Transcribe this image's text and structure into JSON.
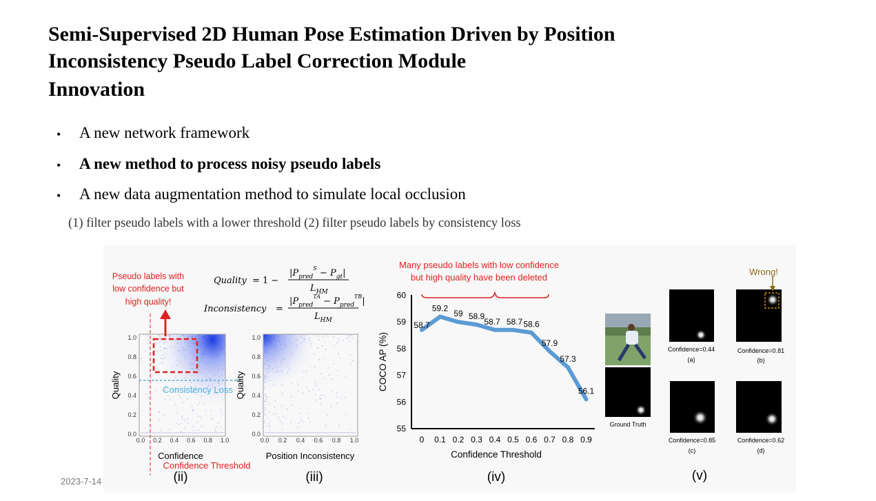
{
  "title_line1": "Semi-Supervised 2D Human Pose Estimation Driven by Position",
  "title_line2": "Inconsistency Pseudo Label Correction Module",
  "subtitle": "Innovation",
  "bullets": [
    "A new network framework",
    "A new method to process noisy pseudo labels",
    "A new data augmentation method to simulate local occlusion"
  ],
  "bullet_symbol": "•",
  "note": "(1) filter pseudo labels with a lower threshold  (2) filter pseudo labels by consistency loss",
  "date": "2023-7-14",
  "figure": {
    "panel_ii": {
      "annot_line1": "Pseudo labels with",
      "annot_line2": "low confidence but",
      "annot_line3": "high quality!",
      "xlabel": "Confidence",
      "ylabel": "Quality",
      "consistency_label": "Consistency Loss",
      "threshold_label": "Confidence Threshold",
      "panel_label": "(ii)",
      "xticks": [
        "0.0",
        "0.2",
        "0.4",
        "0.6",
        "0.8",
        "1.0"
      ],
      "yticks": [
        "0.0",
        "0.2",
        "0.4",
        "0.6",
        "0.8",
        "1.0"
      ]
    },
    "panel_iii": {
      "xlabel": "Position Inconsistency",
      "ylabel": "Quality",
      "panel_label": "(iii)",
      "xticks": [
        "0.0",
        "0.2",
        "0.4",
        "0.6",
        "0.8",
        "1.0"
      ],
      "yticks": [
        "0.0",
        "0.2",
        "0.4",
        "0.6",
        "0.8",
        "1.0"
      ]
    },
    "formula": {
      "quality_lhs": "Quality",
      "inconsistency_lhs": "Inconsistency",
      "quality_num": "|P",
      "den": "L"
    },
    "panel_iv": {
      "annot_line1": "Many pseudo labels with low confidence",
      "annot_line2": "but high quality have been deleted",
      "panel_label": "(iv)",
      "colors": {
        "line": "#5b9bd5",
        "annot": "#e02020"
      }
    },
    "panel_v": {
      "wrong_label": "Wrong!",
      "gt_label": "Ground Truth",
      "conf_a": "Confidence=0.44",
      "conf_b": "Confidence=0.81",
      "conf_c": "Confidence=0.85",
      "conf_d": "Confidence=0.62",
      "lab_a": "(a)",
      "lab_b": "(b)",
      "lab_c": "(c)",
      "lab_d": "(d)",
      "panel_label": "(v)"
    }
  },
  "chart_data": {
    "type": "line",
    "xlabel": "Confidence Threshold",
    "ylabel": "COCO AP (%)",
    "x": [
      0,
      0.1,
      0.2,
      0.3,
      0.4,
      0.5,
      0.6,
      0.7,
      0.8,
      0.9
    ],
    "xtick_labels": [
      "0",
      "0.1",
      "0.2",
      "0.3",
      "0.4",
      "0.5",
      "0.6",
      "0.7",
      "0.8",
      "0.9"
    ],
    "series": [
      {
        "values": [
          58.7,
          59.2,
          59.0,
          58.9,
          58.7,
          58.7,
          58.6,
          57.9,
          57.3,
          56.1
        ],
        "labels": [
          "58.7",
          "59.2",
          "59",
          "58.9",
          "58.7",
          "58.7",
          "58.6",
          "57.9",
          "57.3",
          "56.1"
        ]
      }
    ],
    "ylim": [
      55,
      60
    ],
    "yticks": [
      "55",
      "56",
      "57",
      "58",
      "59",
      "60"
    ],
    "grid": false
  }
}
